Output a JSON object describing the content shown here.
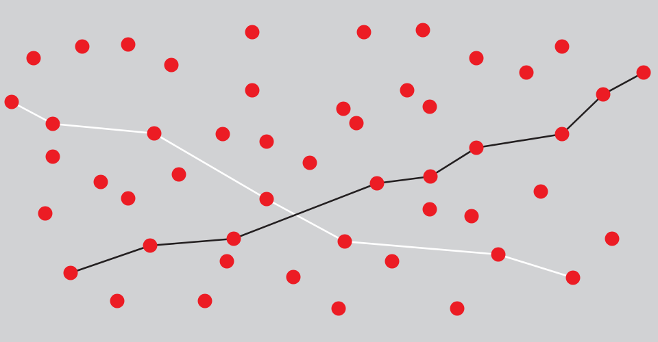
{
  "colors": {
    "background": "#d1d2d4",
    "dot": "#ec1c24",
    "path_light": "#ffffff",
    "path_dark": "#231f20"
  },
  "shapes": {
    "dot": "filled-circle",
    "paths": [
      "white-polyline",
      "black-polyline"
    ]
  }
}
